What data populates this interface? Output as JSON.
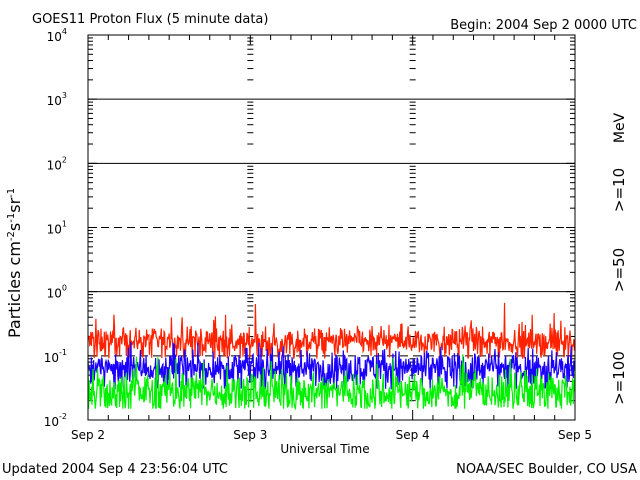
{
  "chart_data": {
    "type": "line",
    "title": "GOES11 Proton Flux (5 minute data)",
    "begin_label": "Begin: 2004 Sep 2 0000 UTC",
    "xlabel": "Universal Time",
    "ylabel": "Particles cm⁻²s⁻¹sr⁻¹",
    "ylabel_parts": {
      "base": "Particles cm",
      "e1": "-2",
      "s": "s",
      "e2": "-1",
      "sr": "sr",
      "e3": "-1"
    },
    "y_scale": "log",
    "ylim": [
      0.01,
      10000
    ],
    "yticks": [
      {
        "value": 0.01,
        "base": "10",
        "exp": "-2"
      },
      {
        "value": 0.1,
        "base": "10",
        "exp": "-1"
      },
      {
        "value": 1,
        "base": "10",
        "exp": "0"
      },
      {
        "value": 10,
        "base": "10",
        "exp": "1"
      },
      {
        "value": 100,
        "base": "10",
        "exp": "2"
      },
      {
        "value": 1000,
        "base": "10",
        "exp": "3"
      },
      {
        "value": 10000,
        "base": "10",
        "exp": "4"
      }
    ],
    "x_categories": [
      "Sep 2",
      "Sep 3",
      "Sep 4",
      "Sep 5"
    ],
    "x_range_days": [
      0,
      3
    ],
    "threshold_lines": [
      {
        "value": 10,
        "style": "dashed"
      },
      {
        "value": 0.1,
        "style": "dashed"
      }
    ],
    "legend": {
      "unit": "MeV"
    },
    "series": [
      {
        "name": ">=10",
        "color": "#ff2200",
        "typical": 0.17,
        "min": 0.09,
        "max": 0.72,
        "spread": 0.33
      },
      {
        "name": ">=50",
        "color": "#1a00ff",
        "typical": 0.065,
        "min": 0.03,
        "max": 0.17,
        "spread": 0.38
      },
      {
        "name": ">=100",
        "color": "#00f000",
        "typical": 0.028,
        "min": 0.015,
        "max": 0.11,
        "spread": 0.45
      }
    ]
  },
  "footer": {
    "updated": "Updated 2004 Sep  4 23:56:04 UTC",
    "source": "NOAA/SEC Boulder, CO USA"
  }
}
